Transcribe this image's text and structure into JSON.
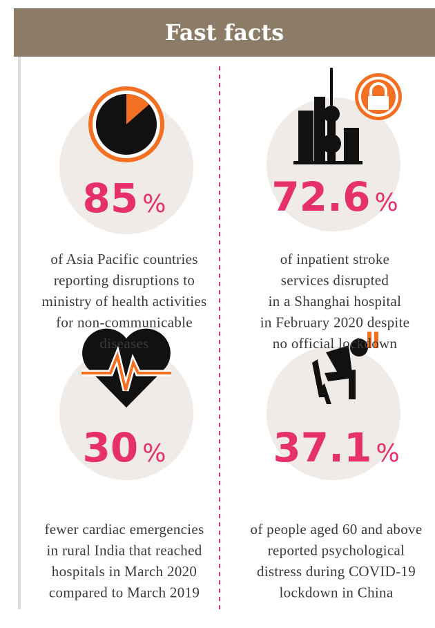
{
  "header": {
    "title": "Fast facts"
  },
  "facts": [
    {
      "value": "85",
      "unit": "%",
      "lines": [
        "of Asia Pacific countries",
        "reporting disruptions to",
        "ministry of health activities",
        "for non-communicable",
        "diseases"
      ]
    },
    {
      "value": "72.6",
      "unit": "%",
      "lines": [
        "of inpatient stroke",
        "services disrupted",
        "in a Shanghai hospital",
        "in February 2020 despite",
        "no official lockdown"
      ]
    },
    {
      "value": "30",
      "unit": "%",
      "lines": [
        "fewer cardiac emergencies",
        "in rural India that reached",
        "hospitals in March 2020",
        "compared to March 2019"
      ]
    },
    {
      "value": "37.1",
      "unit": "%",
      "lines": [
        "of people aged 60 and above",
        "reported psychological",
        "distress during COVID-19",
        "lockdown in China"
      ]
    }
  ]
}
